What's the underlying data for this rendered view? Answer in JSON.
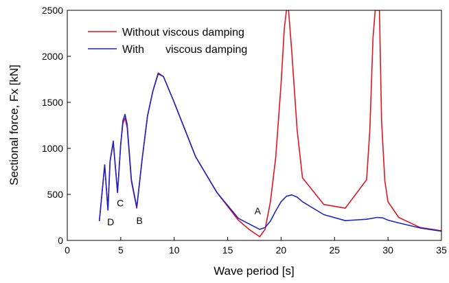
{
  "chart_data": {
    "type": "line",
    "title": "",
    "xlabel": "Wave period [s]",
    "ylabel": "Sectional force, Fx [kN]",
    "xlim": [
      0,
      35
    ],
    "ylim": [
      0,
      2500
    ],
    "x_ticks": [
      0,
      5,
      10,
      15,
      20,
      25,
      30,
      35
    ],
    "y_ticks": [
      0,
      500,
      1000,
      1500,
      2000,
      2500
    ],
    "grid": false,
    "legend_position": "top-left",
    "series": [
      {
        "name": "Without viscous damping",
        "color": "#e0141e",
        "points": [
          [
            3.0,
            210
          ],
          [
            3.5,
            820
          ],
          [
            3.8,
            330
          ],
          [
            4.0,
            860
          ],
          [
            4.3,
            1060
          ],
          [
            4.7,
            520
          ],
          [
            5.0,
            1050
          ],
          [
            5.2,
            1270
          ],
          [
            5.4,
            1330
          ],
          [
            5.6,
            1230
          ],
          [
            6.0,
            640
          ],
          [
            6.5,
            350
          ],
          [
            7.0,
            880
          ],
          [
            7.5,
            1350
          ],
          [
            8.0,
            1620
          ],
          [
            8.5,
            1820
          ],
          [
            9.0,
            1780
          ],
          [
            10.0,
            1500
          ],
          [
            12.0,
            910
          ],
          [
            14.0,
            520
          ],
          [
            16.0,
            220
          ],
          [
            17.0,
            120
          ],
          [
            18.0,
            40
          ],
          [
            18.5,
            120
          ],
          [
            19.0,
            420
          ],
          [
            19.5,
            900
          ],
          [
            20.0,
            1700
          ],
          [
            20.3,
            2300
          ],
          [
            20.5,
            2500
          ],
          [
            20.7,
            2500
          ],
          [
            21.0,
            2050
          ],
          [
            21.5,
            1200
          ],
          [
            22.0,
            680
          ],
          [
            24.0,
            390
          ],
          [
            26.0,
            350
          ],
          [
            28.0,
            660
          ],
          [
            28.3,
            1200
          ],
          [
            28.6,
            2200
          ],
          [
            28.8,
            2500
          ],
          [
            29.2,
            2500
          ],
          [
            29.4,
            1300
          ],
          [
            29.7,
            650
          ],
          [
            30.0,
            420
          ],
          [
            31.0,
            250
          ],
          [
            33.0,
            140
          ],
          [
            35.0,
            105
          ]
        ]
      },
      {
        "name": "With       viscous damping",
        "color": "#1a23c8",
        "points": [
          [
            3.0,
            210
          ],
          [
            3.5,
            820
          ],
          [
            3.8,
            330
          ],
          [
            4.0,
            860
          ],
          [
            4.3,
            1080
          ],
          [
            4.7,
            520
          ],
          [
            5.0,
            1050
          ],
          [
            5.2,
            1300
          ],
          [
            5.4,
            1370
          ],
          [
            5.6,
            1260
          ],
          [
            6.0,
            660
          ],
          [
            6.5,
            360
          ],
          [
            7.0,
            880
          ],
          [
            7.5,
            1350
          ],
          [
            8.0,
            1620
          ],
          [
            8.5,
            1810
          ],
          [
            9.0,
            1780
          ],
          [
            10.0,
            1500
          ],
          [
            12.0,
            910
          ],
          [
            14.0,
            520
          ],
          [
            16.0,
            240
          ],
          [
            17.0,
            180
          ],
          [
            18.0,
            120
          ],
          [
            18.5,
            140
          ],
          [
            19.0,
            210
          ],
          [
            19.5,
            320
          ],
          [
            20.0,
            420
          ],
          [
            20.5,
            480
          ],
          [
            21.0,
            495
          ],
          [
            21.5,
            470
          ],
          [
            22.0,
            420
          ],
          [
            24.0,
            280
          ],
          [
            26.0,
            215
          ],
          [
            28.0,
            230
          ],
          [
            29.0,
            250
          ],
          [
            29.5,
            245
          ],
          [
            30.0,
            220
          ],
          [
            31.0,
            190
          ],
          [
            33.0,
            135
          ],
          [
            35.0,
            100
          ]
        ]
      }
    ],
    "annotations": [
      {
        "text": "A",
        "x": 18.0,
        "y": 120
      },
      {
        "text": "B",
        "x": 6.5,
        "y": 350
      },
      {
        "text": "C",
        "x": 4.7,
        "y": 520
      },
      {
        "text": "D",
        "x": 3.8,
        "y": 330
      }
    ]
  }
}
